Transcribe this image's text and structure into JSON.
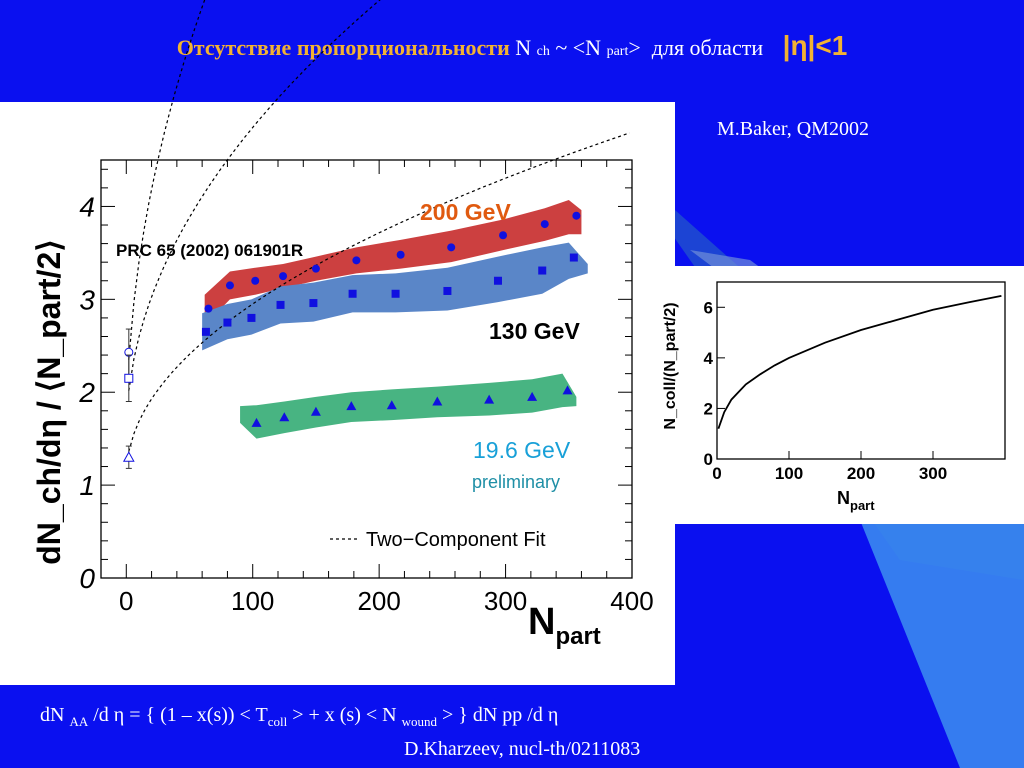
{
  "slide": {
    "title_main": "Отсутствие пропорциональности",
    "title_nch": "N ",
    "title_nch_sub": "ch",
    "title_sim": " ~ <N ",
    "title_part_sub": "part",
    "title_close": ">",
    "title_region": "для области",
    "title_eta": "|η|<1",
    "author": "M.Baker, QM2002",
    "formula_a": "dN ",
    "formula_aa": "AA",
    "formula_b": " /d η = { (1 – x(s)) < T",
    "formula_coll": "coll",
    "formula_c": " > + x (s) < N ",
    "formula_wound": "wound",
    "formula_d": " > } dN pp /d η",
    "reference": "D.Kharzeev, nucl-th/0211083"
  },
  "colors": {
    "background": "#0a10f0",
    "title": "#f2b233",
    "band_200": "#cc4040",
    "band_130": "#5a86c8",
    "band_19": "#48b482",
    "marker": "#1010e0",
    "label_200": "#e05a10",
    "label_19": "#18a0d8"
  },
  "chart_data": [
    {
      "type": "scatter",
      "xlabel_main": "N",
      "xlabel_sub": "part",
      "ylabel": "dN_ch/dη / ⟨N_part/2⟩",
      "xlim": [
        -20,
        400
      ],
      "ylim": [
        0,
        4.5
      ],
      "x_ticks": [
        0,
        100,
        200,
        300,
        400
      ],
      "y_ticks": [
        0,
        1,
        2,
        3,
        4
      ],
      "annotations": {
        "reference": "PRC 65 (2002) 061901R",
        "label_200": "200 GeV",
        "label_130": "130 GeV",
        "label_19": "19.6 GeV",
        "label_19_note": "preliminary",
        "legend": "Two−Component Fit"
      },
      "series": [
        {
          "name": "200 GeV",
          "marker": "circle",
          "x": [
            65,
            82,
            102,
            124,
            150,
            182,
            217,
            257,
            298,
            331,
            356
          ],
          "y": [
            2.9,
            3.15,
            3.2,
            3.25,
            3.33,
            3.42,
            3.48,
            3.56,
            3.69,
            3.81,
            3.9
          ],
          "band": {
            "x": [
              62,
              82,
              102,
              124,
              150,
              182,
              217,
              257,
              298,
              331,
              350,
              360
            ],
            "upper": [
              3.05,
              3.3,
              3.34,
              3.38,
              3.46,
              3.56,
              3.64,
              3.74,
              3.86,
              3.98,
              4.07,
              3.96
            ],
            "lower": [
              2.72,
              3.0,
              3.05,
              3.12,
              3.2,
              3.28,
              3.33,
              3.4,
              3.53,
              3.63,
              3.7,
              3.7
            ]
          },
          "fit": {
            "a": 1.5,
            "b": 0.6
          },
          "pp_point": {
            "x": 2,
            "y": 2.43,
            "err": 0.25
          }
        },
        {
          "name": "130 GeV",
          "marker": "square",
          "x": [
            63,
            80,
            99,
            122,
            148,
            179,
            213,
            254,
            294,
            329,
            354
          ],
          "y": [
            2.65,
            2.75,
            2.8,
            2.94,
            2.96,
            3.06,
            3.06,
            3.09,
            3.2,
            3.31,
            3.45
          ],
          "band": {
            "x": [
              60,
              80,
              99,
              122,
              148,
              179,
              213,
              254,
              294,
              329,
              350,
              365
            ],
            "upper": [
              2.85,
              2.95,
              3.0,
              3.14,
              3.18,
              3.26,
              3.28,
              3.34,
              3.46,
              3.56,
              3.61,
              3.38
            ],
            "lower": [
              2.45,
              2.57,
              2.62,
              2.74,
              2.76,
              2.86,
              2.86,
              2.88,
              2.97,
              3.06,
              3.22,
              3.28
            ]
          },
          "fit": {
            "a": 1.55,
            "b": 0.33
          },
          "pp_point": {
            "x": 2,
            "y": 2.15,
            "err": 0.25
          }
        },
        {
          "name": "19.6 GeV",
          "marker": "triangle",
          "x": [
            103,
            125,
            150,
            178,
            210,
            246,
            287,
            321,
            349
          ],
          "y": [
            1.67,
            1.73,
            1.79,
            1.85,
            1.86,
            1.9,
            1.92,
            1.95,
            2.02
          ],
          "band": {
            "x": [
              90,
              103,
              125,
              150,
              178,
              210,
              246,
              287,
              321,
              345,
              356
            ],
            "upper": [
              1.85,
              1.86,
              1.9,
              1.95,
              2.0,
              2.03,
              2.06,
              2.1,
              2.14,
              2.2,
              1.95
            ],
            "lower": [
              1.67,
              1.5,
              1.56,
              1.62,
              1.68,
              1.7,
              1.73,
              1.75,
              1.78,
              1.84,
              1.85
            ]
          },
          "fit": {
            "a": 1.1,
            "b": 0.185
          },
          "pp_point": {
            "x": 2,
            "y": 1.3,
            "err": 0.12
          }
        }
      ]
    },
    {
      "type": "line",
      "xlabel_main": "N",
      "xlabel_sub": "part",
      "ylabel": "N_coll/(N_part/2)",
      "xlim": [
        0,
        400
      ],
      "ylim": [
        0,
        7
      ],
      "x_ticks": [
        0,
        100,
        200,
        300
      ],
      "y_ticks": [
        0,
        2,
        4,
        6
      ],
      "series": [
        {
          "name": "",
          "x": [
            2,
            10,
            20,
            40,
            60,
            80,
            100,
            150,
            200,
            250,
            300,
            350,
            395
          ],
          "y": [
            1.2,
            1.85,
            2.35,
            2.95,
            3.35,
            3.7,
            4.0,
            4.6,
            5.1,
            5.5,
            5.9,
            6.2,
            6.45
          ]
        }
      ]
    }
  ]
}
